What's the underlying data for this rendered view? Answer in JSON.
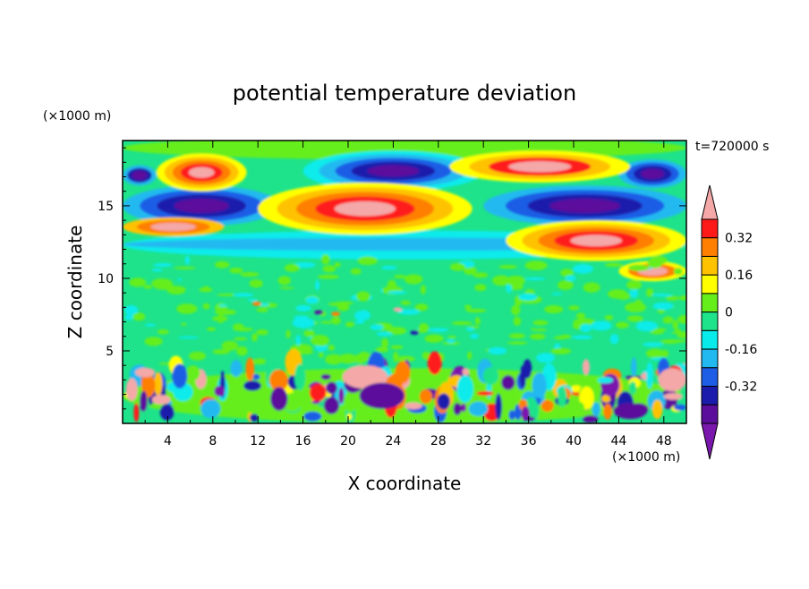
{
  "chart_data": {
    "type": "heatmap",
    "title": "potential temperature deviation",
    "xlabel": "X coordinate",
    "ylabel": "Z coordinate",
    "x_unit_label": "(×1000 m)",
    "y_unit_label": "(×1000 m)",
    "time_label": "t=720000 s",
    "xlim": [
      0,
      50
    ],
    "ylim": [
      0,
      19.5
    ],
    "x_ticks": [
      "4",
      "8",
      "12",
      "16",
      "20",
      "24",
      "28",
      "32",
      "36",
      "40",
      "44",
      "48"
    ],
    "y_ticks": [
      "5",
      "10",
      "15"
    ],
    "colorbar": {
      "levels": [
        -0.48,
        -0.4,
        -0.32,
        -0.24,
        -0.16,
        -0.08,
        0,
        0.08,
        0.16,
        0.24,
        0.32,
        0.4,
        0.48
      ],
      "labels": [
        "0.32",
        "0.16",
        "0",
        "-0.16",
        "-0.32"
      ],
      "colors": [
        "#7a17ad",
        "#5b0e9c",
        "#1c1cac",
        "#1e5de6",
        "#22b9f0",
        "#08ebeb",
        "#1ee38a",
        "#66ee1a",
        "#ffff00",
        "#ffc200",
        "#ff7f00",
        "#ff1a1a",
        "#f4a8a8"
      ]
    },
    "features": [
      {
        "level": 12,
        "x": [
          4.5,
          9
        ],
        "z": [
          16.5,
          18
        ],
        "desc": "positive blob"
      },
      {
        "level": 12,
        "x": [
          14,
          29
        ],
        "z": [
          13.5,
          16
        ],
        "desc": "positive band"
      },
      {
        "level": 12,
        "x": [
          36,
          49
        ],
        "z": [
          11.5,
          13.8
        ],
        "desc": "positive band"
      },
      {
        "level": 12,
        "x": [
          0,
          8
        ],
        "z": [
          13.2,
          14
        ],
        "desc": "positive band"
      },
      {
        "level": 1,
        "x": [
          0,
          13
        ],
        "z": [
          14.2,
          16
        ],
        "desc": "negative band"
      },
      {
        "level": 1,
        "x": [
          18,
          31
        ],
        "z": [
          16.5,
          18.2
        ],
        "desc": "negative band"
      },
      {
        "level": 1,
        "x": [
          33,
          50
        ],
        "z": [
          14,
          16
        ],
        "desc": "negative band"
      },
      {
        "level": 1,
        "x": [
          46,
          50
        ],
        "z": [
          16.5,
          17.8
        ],
        "desc": "negative blob"
      }
    ]
  },
  "colors": {
    "background": "#ffffff",
    "field_base": "#1ee38a"
  }
}
